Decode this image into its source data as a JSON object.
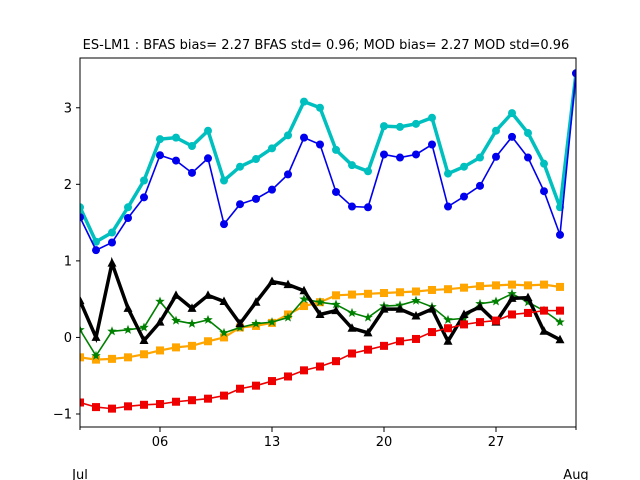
{
  "chart_data": {
    "type": "line",
    "title": "ES-LM1   : BFAS bias= 2.27 BFAS std= 0.96; MOD bias= 2.27 MOD std=0.96",
    "xlabel": "",
    "ylabel": "",
    "x_start": "2017-07-01",
    "x_end": "2017-08-01",
    "xlim": [
      1,
      32
    ],
    "ylim": [
      -1.17,
      3.65
    ],
    "x_ticks": [
      {
        "day": 6,
        "label": "06"
      },
      {
        "day": 13,
        "label": "13"
      },
      {
        "day": 20,
        "label": "20"
      },
      {
        "day": 27,
        "label": "27"
      }
    ],
    "x_minor_labels": [
      {
        "day": 1,
        "label": "Jul"
      },
      {
        "day": 32,
        "label": "Aug"
      }
    ],
    "y_ticks": [
      {
        "value": -1,
        "label": "−1"
      },
      {
        "value": 0,
        "label": "0"
      },
      {
        "value": 1,
        "label": "1"
      },
      {
        "value": 2,
        "label": "2"
      },
      {
        "value": 3,
        "label": "3"
      }
    ],
    "grid": false,
    "legend": "none",
    "x": [
      1,
      2,
      3,
      4,
      5,
      6,
      7,
      8,
      9,
      10,
      11,
      12,
      13,
      14,
      15,
      16,
      17,
      18,
      19,
      20,
      21,
      22,
      23,
      24,
      25,
      26,
      27,
      28,
      29,
      30,
      31,
      32
    ],
    "series": [
      {
        "color": "#00BFBF",
        "marker": "circle",
        "width": 3.5,
        "values": [
          1.7,
          1.25,
          1.37,
          1.7,
          2.05,
          2.59,
          2.61,
          2.5,
          2.7,
          2.05,
          2.23,
          2.33,
          2.47,
          2.64,
          3.08,
          3.0,
          2.45,
          2.25,
          2.17,
          2.76,
          2.75,
          2.79,
          2.87,
          2.14,
          2.23,
          2.35,
          2.7,
          2.93,
          2.67,
          2.27,
          1.7,
          3.45
        ]
      },
      {
        "color": "#0000EE",
        "marker": "circle",
        "width": 1.6,
        "values": [
          1.57,
          1.14,
          1.24,
          1.56,
          1.83,
          2.38,
          2.31,
          2.15,
          2.34,
          1.48,
          1.74,
          1.81,
          1.93,
          2.13,
          2.61,
          2.52,
          1.9,
          1.71,
          1.7,
          2.39,
          2.35,
          2.39,
          2.52,
          1.71,
          1.84,
          1.98,
          2.36,
          2.62,
          2.35,
          1.91,
          1.34,
          3.45
        ]
      },
      {
        "color": "#FFA500",
        "marker": "square",
        "width": 2.2,
        "values": [
          -0.26,
          -0.29,
          -0.28,
          -0.26,
          -0.22,
          -0.17,
          -0.13,
          -0.11,
          -0.05,
          0.0,
          0.13,
          0.15,
          0.19,
          0.3,
          0.41,
          0.46,
          0.55,
          0.56,
          0.57,
          0.58,
          0.59,
          0.6,
          0.62,
          0.63,
          0.65,
          0.67,
          0.68,
          0.69,
          0.68,
          0.69,
          0.66,
          null
        ]
      },
      {
        "color": "#008000",
        "marker": "star",
        "width": 1.6,
        "values": [
          0.1,
          -0.24,
          0.08,
          0.1,
          0.13,
          0.47,
          0.22,
          0.18,
          0.23,
          0.06,
          0.13,
          0.18,
          0.2,
          0.26,
          0.5,
          0.46,
          0.43,
          0.32,
          0.26,
          0.41,
          0.42,
          0.48,
          0.4,
          0.23,
          0.25,
          0.44,
          0.47,
          0.57,
          0.46,
          0.35,
          0.2,
          null
        ]
      },
      {
        "color": "#000000",
        "marker": "triangle",
        "width": 3.5,
        "values": [
          0.48,
          0.0,
          0.97,
          0.38,
          -0.04,
          0.2,
          0.55,
          0.38,
          0.55,
          0.47,
          0.18,
          0.46,
          0.73,
          0.69,
          0.61,
          0.3,
          0.35,
          0.12,
          0.06,
          0.37,
          0.37,
          0.28,
          0.37,
          -0.05,
          0.3,
          0.4,
          0.2,
          0.51,
          0.52,
          0.08,
          -0.03,
          null
        ]
      },
      {
        "color": "#EE0000",
        "marker": "square",
        "width": 1.6,
        "values": [
          -0.85,
          -0.91,
          -0.93,
          -0.9,
          -0.88,
          -0.87,
          -0.84,
          -0.82,
          -0.8,
          -0.76,
          -0.67,
          -0.63,
          -0.57,
          -0.51,
          -0.43,
          -0.38,
          -0.31,
          -0.21,
          -0.16,
          -0.11,
          -0.05,
          -0.02,
          0.07,
          0.12,
          0.17,
          0.2,
          0.22,
          0.3,
          0.32,
          0.35,
          0.35,
          null
        ]
      }
    ]
  }
}
